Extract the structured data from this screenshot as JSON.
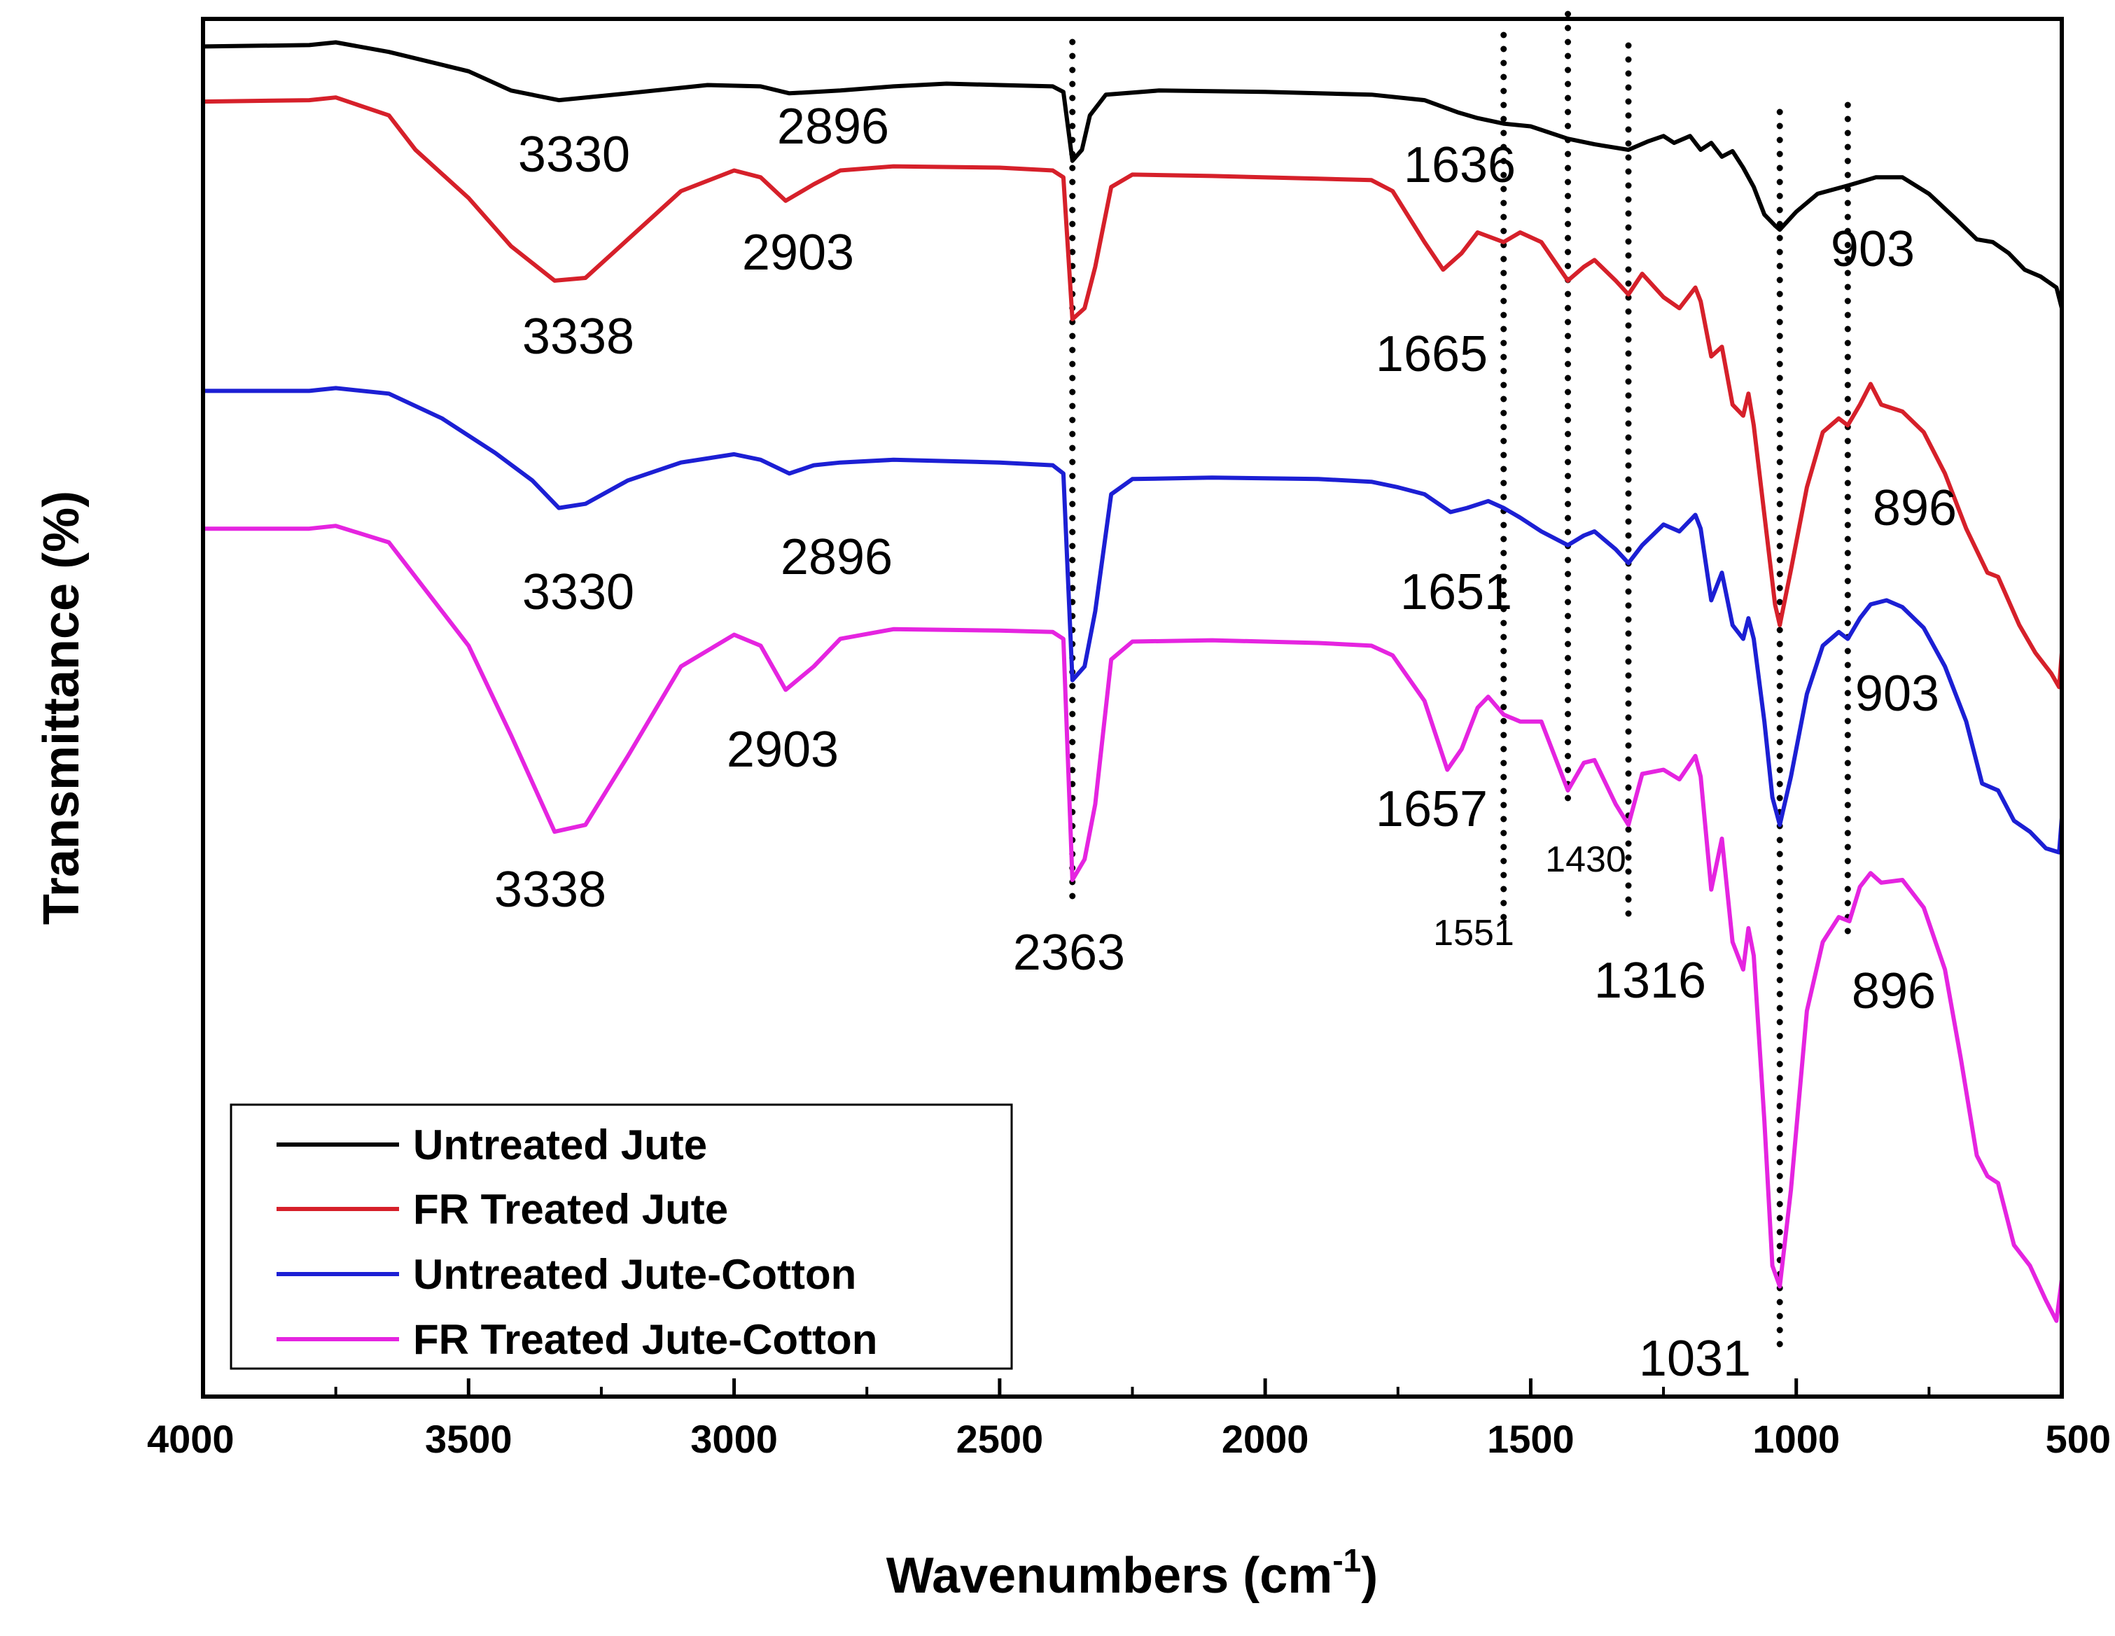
{
  "chart_data": {
    "type": "line",
    "title": "",
    "xlabel": "Wavenumbers (cm",
    "xlabel_superscript": "-1",
    "xlabel_close": ")",
    "ylabel": "Transmittance (%)",
    "xlim": [
      4000,
      500
    ],
    "ylim": [
      0,
      1
    ],
    "y_ticks_shown": false,
    "grid": false,
    "x_ticks": [
      "4000",
      "3500",
      "3000",
      "2500",
      "2000",
      "1500",
      "1000",
      "500"
    ],
    "legend_position": "bottom-left",
    "series": [
      {
        "name": "Untreated Jute",
        "color": "#000000",
        "points": [
          [
            4000,
            0.98
          ],
          [
            3800,
            0.981
          ],
          [
            3750,
            0.983
          ],
          [
            3650,
            0.976
          ],
          [
            3500,
            0.962
          ],
          [
            3420,
            0.948
          ],
          [
            3330,
            0.941
          ],
          [
            3200,
            0.946
          ],
          [
            3050,
            0.952
          ],
          [
            2950,
            0.951
          ],
          [
            2896,
            0.946
          ],
          [
            2800,
            0.948
          ],
          [
            2700,
            0.951
          ],
          [
            2600,
            0.953
          ],
          [
            2500,
            0.952
          ],
          [
            2400,
            0.951
          ],
          [
            2380,
            0.947
          ],
          [
            2363,
            0.897
          ],
          [
            2345,
            0.905
          ],
          [
            2330,
            0.93
          ],
          [
            2300,
            0.945
          ],
          [
            2200,
            0.948
          ],
          [
            2000,
            0.947
          ],
          [
            1900,
            0.946
          ],
          [
            1800,
            0.945
          ],
          [
            1700,
            0.941
          ],
          [
            1636,
            0.932
          ],
          [
            1600,
            0.928
          ],
          [
            1551,
            0.924
          ],
          [
            1500,
            0.922
          ],
          [
            1430,
            0.913
          ],
          [
            1380,
            0.909
          ],
          [
            1316,
            0.905
          ],
          [
            1280,
            0.911
          ],
          [
            1250,
            0.915
          ],
          [
            1230,
            0.91
          ],
          [
            1200,
            0.915
          ],
          [
            1180,
            0.905
          ],
          [
            1160,
            0.91
          ],
          [
            1140,
            0.9
          ],
          [
            1120,
            0.904
          ],
          [
            1100,
            0.892
          ],
          [
            1080,
            0.878
          ],
          [
            1060,
            0.858
          ],
          [
            1040,
            0.85
          ],
          [
            1031,
            0.847
          ],
          [
            1000,
            0.86
          ],
          [
            960,
            0.873
          ],
          [
            903,
            0.879
          ],
          [
            850,
            0.885
          ],
          [
            800,
            0.885
          ],
          [
            750,
            0.873
          ],
          [
            700,
            0.855
          ],
          [
            660,
            0.84
          ],
          [
            630,
            0.838
          ],
          [
            600,
            0.83
          ],
          [
            570,
            0.818
          ],
          [
            540,
            0.813
          ],
          [
            510,
            0.805
          ],
          [
            500,
            0.79
          ]
        ]
      },
      {
        "name": "FR Treated Jute",
        "color": "#d6202a",
        "points": [
          [
            4000,
            0.94
          ],
          [
            3800,
            0.941
          ],
          [
            3750,
            0.943
          ],
          [
            3650,
            0.93
          ],
          [
            3600,
            0.905
          ],
          [
            3500,
            0.87
          ],
          [
            3420,
            0.835
          ],
          [
            3338,
            0.81
          ],
          [
            3280,
            0.812
          ],
          [
            3200,
            0.84
          ],
          [
            3100,
            0.875
          ],
          [
            3000,
            0.89
          ],
          [
            2950,
            0.885
          ],
          [
            2903,
            0.868
          ],
          [
            2850,
            0.88
          ],
          [
            2800,
            0.89
          ],
          [
            2700,
            0.893
          ],
          [
            2500,
            0.892
          ],
          [
            2400,
            0.89
          ],
          [
            2380,
            0.885
          ],
          [
            2363,
            0.782
          ],
          [
            2340,
            0.79
          ],
          [
            2320,
            0.82
          ],
          [
            2290,
            0.878
          ],
          [
            2250,
            0.887
          ],
          [
            2100,
            0.886
          ],
          [
            1900,
            0.884
          ],
          [
            1800,
            0.883
          ],
          [
            1760,
            0.875
          ],
          [
            1700,
            0.838
          ],
          [
            1665,
            0.818
          ],
          [
            1630,
            0.83
          ],
          [
            1600,
            0.845
          ],
          [
            1551,
            0.838
          ],
          [
            1520,
            0.845
          ],
          [
            1480,
            0.838
          ],
          [
            1430,
            0.81
          ],
          [
            1400,
            0.82
          ],
          [
            1380,
            0.825
          ],
          [
            1340,
            0.81
          ],
          [
            1316,
            0.8
          ],
          [
            1290,
            0.815
          ],
          [
            1250,
            0.798
          ],
          [
            1220,
            0.79
          ],
          [
            1190,
            0.805
          ],
          [
            1180,
            0.795
          ],
          [
            1160,
            0.755
          ],
          [
            1140,
            0.762
          ],
          [
            1120,
            0.72
          ],
          [
            1100,
            0.712
          ],
          [
            1090,
            0.728
          ],
          [
            1080,
            0.705
          ],
          [
            1060,
            0.64
          ],
          [
            1040,
            0.575
          ],
          [
            1031,
            0.56
          ],
          [
            1010,
            0.6
          ],
          [
            980,
            0.66
          ],
          [
            950,
            0.7
          ],
          [
            920,
            0.71
          ],
          [
            903,
            0.705
          ],
          [
            880,
            0.72
          ],
          [
            860,
            0.735
          ],
          [
            840,
            0.72
          ],
          [
            800,
            0.715
          ],
          [
            760,
            0.7
          ],
          [
            720,
            0.67
          ],
          [
            680,
            0.63
          ],
          [
            640,
            0.598
          ],
          [
            620,
            0.595
          ],
          [
            580,
            0.56
          ],
          [
            550,
            0.54
          ],
          [
            520,
            0.525
          ],
          [
            505,
            0.515
          ],
          [
            500,
            0.54
          ]
        ]
      },
      {
        "name": "Untreated Jute-Cotton",
        "color": "#1c1fd4",
        "points": [
          [
            4000,
            0.73
          ],
          [
            3800,
            0.73
          ],
          [
            3750,
            0.732
          ],
          [
            3650,
            0.728
          ],
          [
            3550,
            0.71
          ],
          [
            3450,
            0.685
          ],
          [
            3380,
            0.665
          ],
          [
            3330,
            0.645
          ],
          [
            3280,
            0.648
          ],
          [
            3200,
            0.665
          ],
          [
            3100,
            0.678
          ],
          [
            3000,
            0.684
          ],
          [
            2950,
            0.68
          ],
          [
            2896,
            0.67
          ],
          [
            2850,
            0.676
          ],
          [
            2800,
            0.678
          ],
          [
            2700,
            0.68
          ],
          [
            2500,
            0.678
          ],
          [
            2400,
            0.676
          ],
          [
            2380,
            0.67
          ],
          [
            2363,
            0.52
          ],
          [
            2340,
            0.53
          ],
          [
            2320,
            0.57
          ],
          [
            2290,
            0.655
          ],
          [
            2250,
            0.666
          ],
          [
            2100,
            0.667
          ],
          [
            1900,
            0.666
          ],
          [
            1800,
            0.664
          ],
          [
            1750,
            0.66
          ],
          [
            1700,
            0.655
          ],
          [
            1651,
            0.642
          ],
          [
            1620,
            0.645
          ],
          [
            1580,
            0.65
          ],
          [
            1551,
            0.645
          ],
          [
            1520,
            0.638
          ],
          [
            1480,
            0.628
          ],
          [
            1430,
            0.618
          ],
          [
            1400,
            0.625
          ],
          [
            1380,
            0.628
          ],
          [
            1340,
            0.615
          ],
          [
            1316,
            0.605
          ],
          [
            1290,
            0.618
          ],
          [
            1250,
            0.633
          ],
          [
            1220,
            0.628
          ],
          [
            1190,
            0.64
          ],
          [
            1180,
            0.63
          ],
          [
            1160,
            0.578
          ],
          [
            1140,
            0.598
          ],
          [
            1120,
            0.56
          ],
          [
            1100,
            0.55
          ],
          [
            1090,
            0.565
          ],
          [
            1080,
            0.55
          ],
          [
            1060,
            0.49
          ],
          [
            1045,
            0.435
          ],
          [
            1031,
            0.415
          ],
          [
            1010,
            0.45
          ],
          [
            980,
            0.51
          ],
          [
            950,
            0.545
          ],
          [
            920,
            0.555
          ],
          [
            903,
            0.55
          ],
          [
            880,
            0.565
          ],
          [
            860,
            0.575
          ],
          [
            830,
            0.578
          ],
          [
            800,
            0.573
          ],
          [
            760,
            0.558
          ],
          [
            720,
            0.53
          ],
          [
            680,
            0.49
          ],
          [
            650,
            0.445
          ],
          [
            620,
            0.44
          ],
          [
            590,
            0.418
          ],
          [
            560,
            0.41
          ],
          [
            530,
            0.398
          ],
          [
            505,
            0.395
          ],
          [
            500,
            0.42
          ]
        ]
      },
      {
        "name": "FR Treated Jute-Cotton",
        "color": "#e524e0",
        "points": [
          [
            4000,
            0.63
          ],
          [
            3800,
            0.63
          ],
          [
            3750,
            0.632
          ],
          [
            3650,
            0.62
          ],
          [
            3600,
            0.595
          ],
          [
            3500,
            0.545
          ],
          [
            3420,
            0.48
          ],
          [
            3338,
            0.41
          ],
          [
            3280,
            0.415
          ],
          [
            3200,
            0.465
          ],
          [
            3100,
            0.53
          ],
          [
            3000,
            0.553
          ],
          [
            2950,
            0.545
          ],
          [
            2903,
            0.513
          ],
          [
            2850,
            0.53
          ],
          [
            2800,
            0.55
          ],
          [
            2700,
            0.557
          ],
          [
            2500,
            0.556
          ],
          [
            2400,
            0.555
          ],
          [
            2380,
            0.55
          ],
          [
            2363,
            0.375
          ],
          [
            2340,
            0.39
          ],
          [
            2320,
            0.43
          ],
          [
            2290,
            0.535
          ],
          [
            2250,
            0.548
          ],
          [
            2100,
            0.549
          ],
          [
            1900,
            0.547
          ],
          [
            1800,
            0.545
          ],
          [
            1760,
            0.538
          ],
          [
            1700,
            0.505
          ],
          [
            1657,
            0.455
          ],
          [
            1630,
            0.47
          ],
          [
            1600,
            0.5
          ],
          [
            1580,
            0.508
          ],
          [
            1551,
            0.495
          ],
          [
            1520,
            0.49
          ],
          [
            1480,
            0.49
          ],
          [
            1440,
            0.45
          ],
          [
            1430,
            0.44
          ],
          [
            1400,
            0.46
          ],
          [
            1380,
            0.462
          ],
          [
            1340,
            0.43
          ],
          [
            1316,
            0.415
          ],
          [
            1290,
            0.452
          ],
          [
            1250,
            0.455
          ],
          [
            1220,
            0.448
          ],
          [
            1190,
            0.465
          ],
          [
            1180,
            0.45
          ],
          [
            1160,
            0.368
          ],
          [
            1140,
            0.405
          ],
          [
            1120,
            0.33
          ],
          [
            1100,
            0.31
          ],
          [
            1090,
            0.34
          ],
          [
            1080,
            0.32
          ],
          [
            1060,
            0.2
          ],
          [
            1045,
            0.095
          ],
          [
            1031,
            0.08
          ],
          [
            1010,
            0.15
          ],
          [
            980,
            0.28
          ],
          [
            950,
            0.33
          ],
          [
            920,
            0.348
          ],
          [
            900,
            0.345
          ],
          [
            880,
            0.37
          ],
          [
            860,
            0.38
          ],
          [
            840,
            0.373
          ],
          [
            800,
            0.375
          ],
          [
            760,
            0.355
          ],
          [
            720,
            0.31
          ],
          [
            690,
            0.245
          ],
          [
            660,
            0.175
          ],
          [
            640,
            0.16
          ],
          [
            620,
            0.155
          ],
          [
            590,
            0.11
          ],
          [
            560,
            0.095
          ],
          [
            530,
            0.07
          ],
          [
            510,
            0.055
          ],
          [
            500,
            0.085
          ]
        ]
      }
    ],
    "reference_lines": [
      2363,
      1551,
      1430,
      1316,
      1031,
      903
    ],
    "annotations": [
      {
        "text": "3330",
        "series": "Untreated Jute"
      },
      {
        "text": "2896",
        "series": "Untreated Jute"
      },
      {
        "text": "1636",
        "series": "Untreated Jute"
      },
      {
        "text": "903",
        "series": "Untreated Jute"
      },
      {
        "text": "3338",
        "series": "FR Treated Jute"
      },
      {
        "text": "2903",
        "series": "FR Treated Jute"
      },
      {
        "text": "1665",
        "series": "FR Treated Jute"
      },
      {
        "text": "896",
        "series": "FR Treated Jute"
      },
      {
        "text": "3330",
        "series": "Untreated Jute-Cotton"
      },
      {
        "text": "2896",
        "series": "Untreated Jute-Cotton"
      },
      {
        "text": "1651",
        "series": "Untreated Jute-Cotton"
      },
      {
        "text": "903",
        "series": "Untreated Jute-Cotton"
      },
      {
        "text": "3338",
        "series": "FR Treated Jute-Cotton"
      },
      {
        "text": "2903",
        "series": "FR Treated Jute-Cotton"
      },
      {
        "text": "1657",
        "series": "FR Treated Jute-Cotton"
      },
      {
        "text": "896",
        "series": "FR Treated Jute-Cotton"
      },
      {
        "text": "2363",
        "series": "all"
      },
      {
        "text": "1551",
        "series": "all"
      },
      {
        "text": "1430",
        "series": "all"
      },
      {
        "text": "1316",
        "series": "all"
      },
      {
        "text": "1031",
        "series": "all"
      }
    ]
  }
}
